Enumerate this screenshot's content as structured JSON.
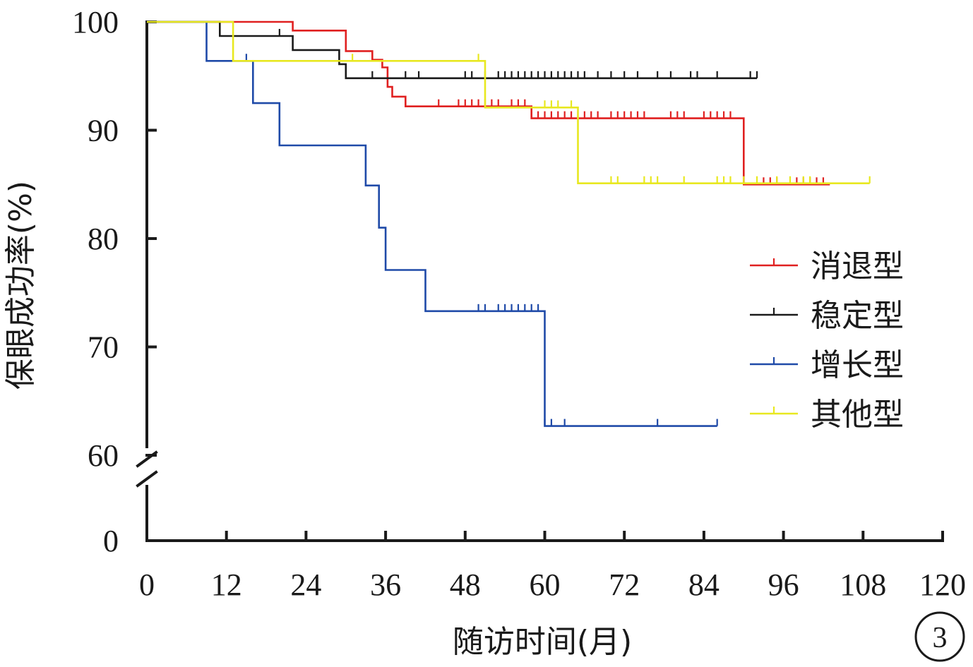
{
  "chart_data": {
    "type": "line",
    "step": true,
    "title": "",
    "xlabel": "随访时间(月)",
    "ylabel": "保眼成功率(%)",
    "xlim": [
      0,
      120
    ],
    "x_ticks": [
      0,
      12,
      24,
      36,
      48,
      60,
      72,
      84,
      96,
      108,
      120
    ],
    "ylim_lower": [
      0,
      60
    ],
    "ylim_upper": [
      60,
      100
    ],
    "y_ticks": [
      0,
      60,
      70,
      80,
      90,
      100
    ],
    "y_axis_break": [
      0,
      60
    ],
    "grid": false,
    "legend_position": "right-middle",
    "panel_label": "3",
    "series": [
      {
        "name": "消退型",
        "color": "#e02020",
        "steps": [
          [
            0,
            100
          ],
          [
            22,
            99.2
          ],
          [
            30,
            97.3
          ],
          [
            34,
            96.5
          ],
          [
            35.5,
            95.8
          ],
          [
            36.3,
            94
          ],
          [
            37,
            93.1
          ],
          [
            39,
            92.2
          ],
          [
            58,
            91.1
          ],
          [
            90,
            85
          ],
          [
            103,
            85
          ]
        ],
        "censor": [
          44,
          47,
          48,
          49,
          50,
          51,
          52,
          53,
          55,
          56,
          57,
          59,
          60,
          61,
          62,
          63,
          64,
          65,
          66,
          67,
          68,
          70,
          71,
          72,
          73,
          74,
          75,
          79,
          80,
          81,
          84,
          85,
          86,
          87,
          88,
          93,
          94,
          95,
          98,
          99,
          100,
          101,
          102
        ]
      },
      {
        "name": "稳定型",
        "color": "#1a1a1a",
        "steps": [
          [
            0,
            100
          ],
          [
            11,
            98.7
          ],
          [
            22,
            97.4
          ],
          [
            29,
            96.1
          ],
          [
            30,
            94.8
          ],
          [
            92,
            94.8
          ]
        ],
        "censor": [
          20,
          34,
          39,
          41,
          48,
          49,
          51,
          53,
          54,
          55,
          56,
          57,
          58,
          59,
          60,
          61,
          62,
          63,
          64,
          65,
          66,
          68,
          70,
          72,
          74,
          77,
          79,
          82,
          83,
          86,
          91,
          92
        ]
      },
      {
        "name": "增长型",
        "color": "#1f4aa8",
        "steps": [
          [
            0,
            100
          ],
          [
            9,
            96.4
          ],
          [
            16,
            92.5
          ],
          [
            20,
            88.6
          ],
          [
            33,
            84.9
          ],
          [
            35,
            81
          ],
          [
            36,
            77.1
          ],
          [
            42,
            73.3
          ],
          [
            60,
            62.7
          ],
          [
            86,
            62.7
          ]
        ],
        "censor": [
          15,
          50,
          51,
          53,
          54,
          55,
          56,
          57,
          58,
          59,
          60,
          61,
          63,
          77,
          86
        ]
      },
      {
        "name": "其他型",
        "color": "#e8e820",
        "steps": [
          [
            0,
            100
          ],
          [
            13,
            96.4
          ],
          [
            51,
            92.1
          ],
          [
            65,
            85.1
          ],
          [
            109,
            85.1
          ]
        ],
        "censor": [
          31,
          50,
          60,
          61,
          62,
          64,
          70,
          71,
          75,
          76,
          77,
          81,
          86,
          87,
          88,
          90,
          92,
          95,
          97,
          99,
          100,
          109
        ]
      }
    ]
  }
}
